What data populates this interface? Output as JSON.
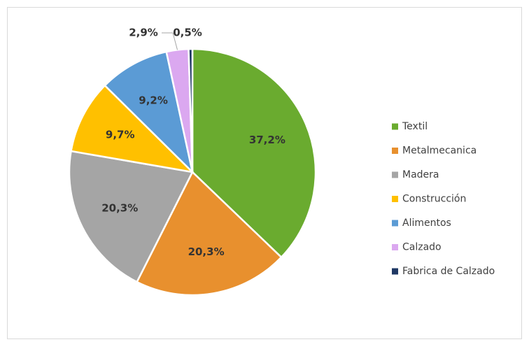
{
  "chart_data": {
    "type": "pie",
    "categories": [
      "Textil",
      "Metalmecanica",
      "Madera",
      "Construcción",
      "Alimentos",
      "Calzado",
      "Fabrica de Calzado"
    ],
    "values": [
      37.2,
      20.3,
      20.3,
      9.7,
      9.2,
      2.9,
      0.5
    ],
    "value_labels": [
      "37,2%",
      "20,3%",
      "20,3%",
      "9,7%",
      "9,2%",
      "2,9%",
      "0,5%"
    ],
    "colors": [
      "#6aab2f",
      "#e8902e",
      "#a5a5a5",
      "#ffc000",
      "#5b9bd5",
      "#dba8f0",
      "#1f3864"
    ],
    "legend": "right"
  }
}
